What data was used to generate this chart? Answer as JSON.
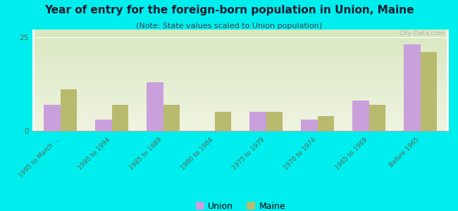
{
  "title": "Year of entry for the foreign-born population in Union, Maine",
  "subtitle": "(Note: State values scaled to Union population)",
  "categories": [
    "1995 to March ...",
    "1990 to 1994",
    "1985 to 1989",
    "1980 to 1984",
    "1975 to 1979",
    "1970 to 1974",
    "1965 to 1969",
    "Before 1965"
  ],
  "union_values": [
    7,
    3,
    13,
    0,
    5,
    3,
    8,
    23
  ],
  "maine_values": [
    11,
    7,
    7,
    5,
    5,
    4,
    7,
    21
  ],
  "union_color": "#c9a0dc",
  "maine_color": "#b8bb6e",
  "background_color": "#00eeee",
  "plot_bg_gradient_top": "#d8e8c0",
  "plot_bg_gradient_bottom": "#f0f4e0",
  "ylim": [
    0,
    27
  ],
  "yticks": [
    0,
    25
  ],
  "bar_width": 0.32,
  "legend_union": "Union",
  "legend_maine": "Maine",
  "watermark": "City-Data.com",
  "title_fontsize": 11,
  "subtitle_fontsize": 8,
  "title_color": "#1a1a2e",
  "subtitle_color": "#444455",
  "tick_color": "#556655"
}
